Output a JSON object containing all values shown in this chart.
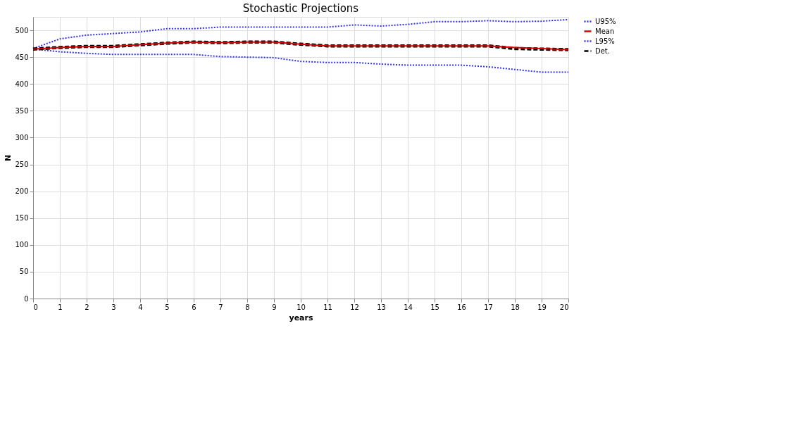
{
  "chart_data": {
    "type": "line",
    "title": "Stochastic Projections",
    "xlabel": "years",
    "ylabel": "N",
    "x": [
      0,
      1,
      2,
      3,
      4,
      5,
      6,
      7,
      8,
      9,
      10,
      11,
      12,
      13,
      14,
      15,
      16,
      17,
      18,
      19,
      20
    ],
    "series": [
      {
        "name": "U95%",
        "color": "#3333ee",
        "line_style": "dotted",
        "values": [
          466,
          484,
          491,
          494,
          497,
          503,
          503,
          506,
          506,
          506,
          506,
          506,
          510,
          508,
          511,
          516,
          516,
          518,
          516,
          517,
          520
        ]
      },
      {
        "name": "Mean",
        "color": "#dd0000",
        "line_style": "solid",
        "values": [
          465,
          468,
          470,
          470,
          473,
          476,
          478,
          477,
          478,
          478,
          474,
          471,
          471,
          471,
          471,
          471,
          471,
          471,
          468,
          466,
          464
        ]
      },
      {
        "name": "L95%",
        "color": "#3333ee",
        "line_style": "dotted",
        "values": [
          465,
          460,
          457,
          455,
          455,
          455,
          455,
          451,
          450,
          449,
          442,
          440,
          440,
          437,
          435,
          435,
          435,
          432,
          427,
          422,
          422
        ]
      },
      {
        "name": "Det.",
        "color": "#000000",
        "line_style": "dashed",
        "values": [
          465,
          468,
          470,
          470,
          473,
          476,
          478,
          477,
          478,
          478,
          474,
          471,
          471,
          471,
          471,
          471,
          471,
          471,
          466,
          465,
          464
        ]
      }
    ],
    "xlim": [
      0,
      20
    ],
    "xticks": [
      0,
      1,
      2,
      3,
      4,
      5,
      6,
      7,
      8,
      9,
      10,
      11,
      12,
      13,
      14,
      15,
      16,
      17,
      18,
      19,
      20
    ],
    "ylim": [
      0,
      525
    ],
    "yticks": [
      0,
      50,
      100,
      150,
      200,
      250,
      300,
      350,
      400,
      450,
      500
    ],
    "grid": true,
    "legend": "right",
    "marker": "none"
  }
}
